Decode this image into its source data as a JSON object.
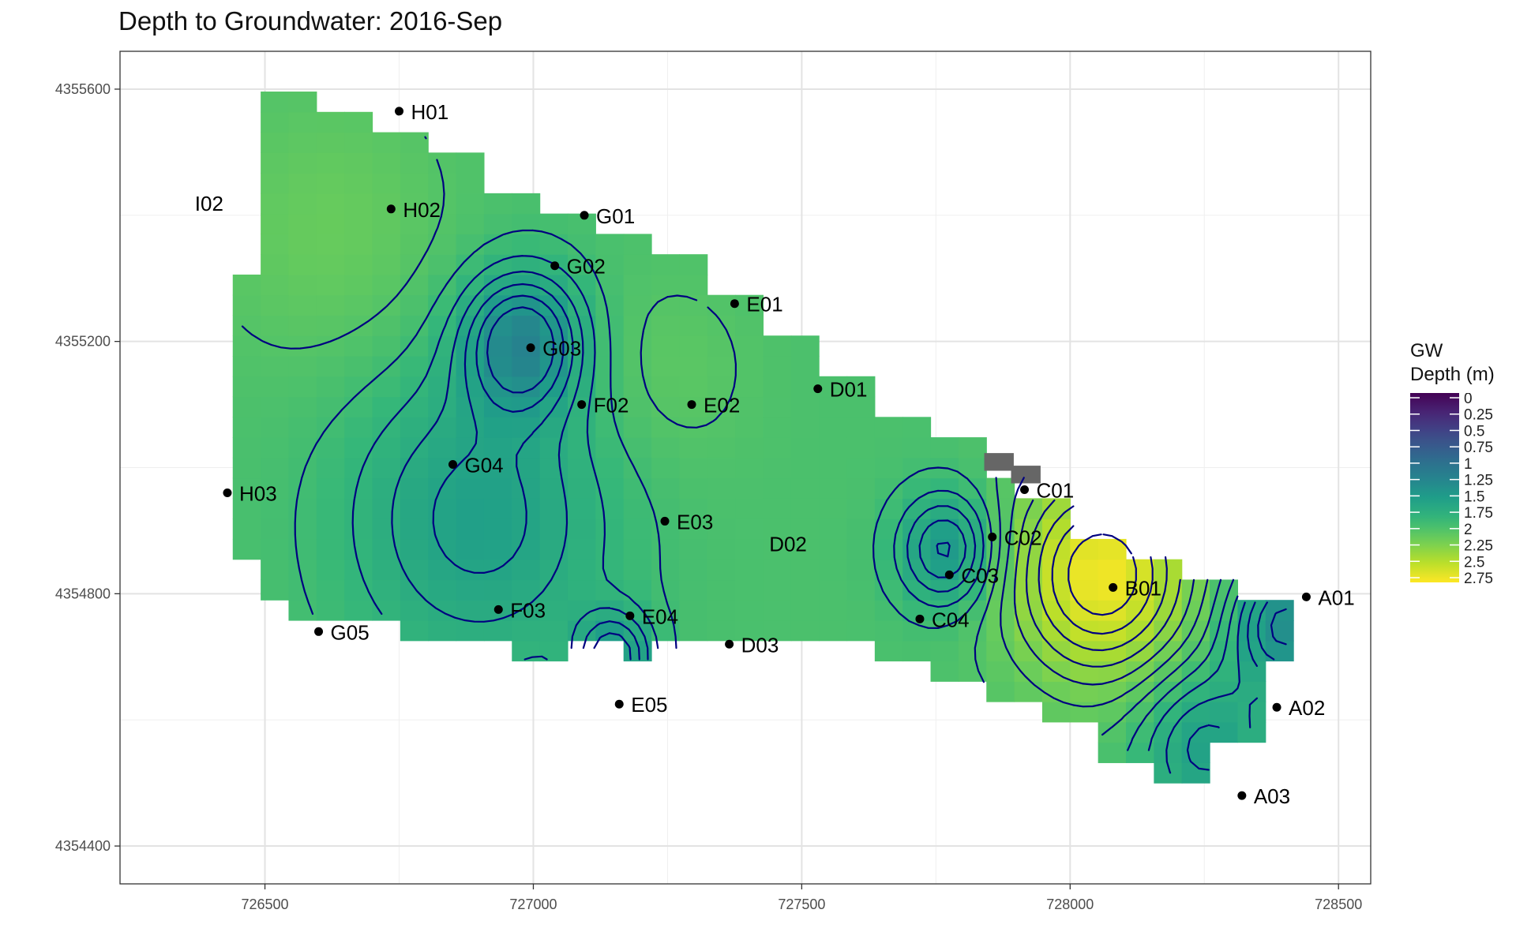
{
  "chart_data": {
    "type": "heatmap",
    "title": "Depth to Groundwater: 2016-Sep",
    "xlabel": "",
    "ylabel": "",
    "xlim": [
      726230,
      728560
    ],
    "ylim": [
      4354340,
      4355660
    ],
    "x_ticks": [
      726500,
      727000,
      727500,
      728000,
      728500
    ],
    "x_tick_labels": [
      "726500",
      "727000",
      "727500",
      "728000",
      "728500"
    ],
    "y_ticks": [
      4354400,
      4354800,
      4355200,
      4355600
    ],
    "y_tick_labels": [
      "4354400",
      "4354800",
      "4355200",
      "4355600"
    ],
    "grid": true,
    "legend": {
      "title": [
        "GW",
        "Depth (m)"
      ],
      "placement": "right",
      "min": 0,
      "max": 2.75,
      "breaks": [
        0,
        0.25,
        0.5,
        0.75,
        1,
        1.25,
        1.5,
        1.75,
        2,
        2.25,
        2.5,
        2.75
      ],
      "labels": [
        "0",
        "0.25",
        "0.5",
        "0.75",
        "1",
        "1.25",
        "1.5",
        "1.75",
        "2",
        "2.25",
        "2.5",
        "2.75"
      ]
    },
    "colorscale": "viridis",
    "contour_color": "#000080",
    "na_color": "#666666",
    "grid_cell_size": 52,
    "domain_polygon": [
      [
        726500,
        4355595
      ],
      [
        726600,
        4355595
      ],
      [
        726600,
        4355560
      ],
      [
        726710,
        4355560
      ],
      [
        726710,
        4355530
      ],
      [
        726810,
        4355530
      ],
      [
        726810,
        4355490
      ],
      [
        726920,
        4355490
      ],
      [
        726920,
        4355440
      ],
      [
        727020,
        4355440
      ],
      [
        727020,
        4355400
      ],
      [
        727120,
        4355400
      ],
      [
        727120,
        4355370
      ],
      [
        727220,
        4355370
      ],
      [
        727220,
        4355330
      ],
      [
        727320,
        4355330
      ],
      [
        727320,
        4355270
      ],
      [
        727420,
        4355270
      ],
      [
        727420,
        4355220
      ],
      [
        727520,
        4355220
      ],
      [
        727520,
        4355140
      ],
      [
        727620,
        4355140
      ],
      [
        727620,
        4355080
      ],
      [
        727720,
        4355080
      ],
      [
        727720,
        4355040
      ],
      [
        727820,
        4355040
      ],
      [
        727820,
        4354995
      ],
      [
        727920,
        4354995
      ],
      [
        727920,
        4354950
      ],
      [
        728020,
        4354950
      ],
      [
        728020,
        4354900
      ],
      [
        728120,
        4354900
      ],
      [
        728120,
        4354870
      ],
      [
        728220,
        4354870
      ],
      [
        728220,
        4354830
      ],
      [
        728320,
        4354830
      ],
      [
        728320,
        4354800
      ],
      [
        728410,
        4354800
      ],
      [
        728410,
        4354680
      ],
      [
        728360,
        4354680
      ],
      [
        728360,
        4354580
      ],
      [
        728260,
        4354580
      ],
      [
        728260,
        4354510
      ],
      [
        728160,
        4354510
      ],
      [
        728160,
        4354540
      ],
      [
        728060,
        4354540
      ],
      [
        728060,
        4354590
      ],
      [
        727950,
        4354590
      ],
      [
        727950,
        4354630
      ],
      [
        727850,
        4354630
      ],
      [
        727850,
        4354650
      ],
      [
        727740,
        4354650
      ],
      [
        727740,
        4354680
      ],
      [
        727650,
        4354680
      ],
      [
        727650,
        4354710
      ],
      [
        727550,
        4354710
      ],
      [
        727550,
        4354740
      ],
      [
        727450,
        4354740
      ],
      [
        727450,
        4354740
      ],
      [
        727350,
        4354740
      ],
      [
        727350,
        4354710
      ],
      [
        727240,
        4354710
      ],
      [
        727240,
        4354680
      ],
      [
        727150,
        4354680
      ],
      [
        727150,
        4354710
      ],
      [
        727060,
        4354710
      ],
      [
        727060,
        4354680
      ],
      [
        726950,
        4354680
      ],
      [
        726950,
        4354710
      ],
      [
        726850,
        4354710
      ],
      [
        726850,
        4354740
      ],
      [
        726750,
        4354740
      ],
      [
        726750,
        4354760
      ],
      [
        726560,
        4354760
      ],
      [
        726560,
        4354800
      ],
      [
        726500,
        4354800
      ],
      [
        726500,
        4354850
      ],
      [
        726450,
        4354850
      ],
      [
        726450,
        4355100
      ],
      [
        726450,
        4355300
      ],
      [
        726500,
        4355300
      ]
    ],
    "depth_field_peaks": {
      "base_depth": 1.95,
      "peaks": [
        {
          "x": 728060,
          "y": 4354830,
          "depth": 2.7,
          "radius": 170
        },
        {
          "x": 726620,
          "y": 4355380,
          "depth": 2.1,
          "radius": 220
        },
        {
          "x": 727250,
          "y": 4355150,
          "depth": 2.05,
          "radius": 160
        }
      ],
      "pits": [
        {
          "x": 726980,
          "y": 4355200,
          "depth": 1.3,
          "radius": 110
        },
        {
          "x": 726900,
          "y": 4354920,
          "depth": 1.55,
          "radius": 240
        },
        {
          "x": 727770,
          "y": 4354870,
          "depth": 1.45,
          "radius": 90
        },
        {
          "x": 728400,
          "y": 4354750,
          "depth": 1.35,
          "radius": 100
        },
        {
          "x": 728250,
          "y": 4354560,
          "depth": 1.55,
          "radius": 120
        },
        {
          "x": 727150,
          "y": 4354700,
          "depth": 1.45,
          "radius": 70
        }
      ]
    },
    "na_cells": [
      [
        727840,
        4354995
      ],
      [
        727890,
        4354975
      ]
    ],
    "wells": [
      {
        "name": "H01",
        "x": 726750,
        "y": 4355565,
        "marker": true
      },
      {
        "name": "H02",
        "x": 726735,
        "y": 4355410,
        "marker": true
      },
      {
        "name": "I02",
        "x": 726390,
        "y": 4355420,
        "marker": false
      },
      {
        "name": "G01",
        "x": 727095,
        "y": 4355400,
        "marker": true
      },
      {
        "name": "G02",
        "x": 727040,
        "y": 4355320,
        "marker": true
      },
      {
        "name": "G03",
        "x": 726995,
        "y": 4355190,
        "marker": true
      },
      {
        "name": "E01",
        "x": 727375,
        "y": 4355260,
        "marker": true
      },
      {
        "name": "F02",
        "x": 727090,
        "y": 4355100,
        "marker": true
      },
      {
        "name": "E02",
        "x": 727295,
        "y": 4355100,
        "marker": true
      },
      {
        "name": "D01",
        "x": 727530,
        "y": 4355125,
        "marker": true
      },
      {
        "name": "G04",
        "x": 726850,
        "y": 4355005,
        "marker": true
      },
      {
        "name": "H03",
        "x": 726430,
        "y": 4354960,
        "marker": true
      },
      {
        "name": "E03",
        "x": 727245,
        "y": 4354915,
        "marker": true
      },
      {
        "name": "C01",
        "x": 727915,
        "y": 4354965,
        "marker": true
      },
      {
        "name": "C02",
        "x": 727855,
        "y": 4354890,
        "marker": true
      },
      {
        "name": "D02",
        "x": 727460,
        "y": 4354880,
        "marker": false
      },
      {
        "name": "C03",
        "x": 727775,
        "y": 4354830,
        "marker": true
      },
      {
        "name": "B01",
        "x": 728080,
        "y": 4354810,
        "marker": true
      },
      {
        "name": "A01",
        "x": 728440,
        "y": 4354795,
        "marker": true
      },
      {
        "name": "F03",
        "x": 726935,
        "y": 4354775,
        "marker": true
      },
      {
        "name": "E04",
        "x": 727180,
        "y": 4354765,
        "marker": true
      },
      {
        "name": "C04",
        "x": 727720,
        "y": 4354760,
        "marker": true
      },
      {
        "name": "G05",
        "x": 726600,
        "y": 4354740,
        "marker": true
      },
      {
        "name": "D03",
        "x": 727365,
        "y": 4354720,
        "marker": true
      },
      {
        "name": "E05",
        "x": 727160,
        "y": 4354625,
        "marker": true
      },
      {
        "name": "A02",
        "x": 728385,
        "y": 4354620,
        "marker": true
      },
      {
        "name": "A03",
        "x": 728320,
        "y": 4354480,
        "marker": true
      }
    ]
  }
}
